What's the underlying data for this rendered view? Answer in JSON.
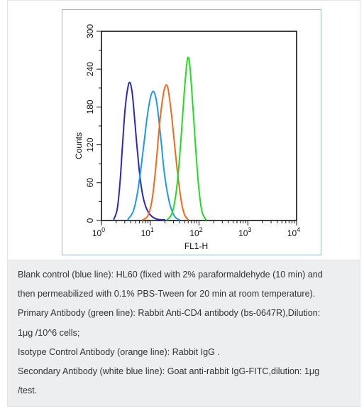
{
  "chart_data": {
    "type": "line",
    "xlabel": "FL1-H",
    "ylabel": "Counts",
    "xscale": "log",
    "xlim": [
      1,
      10000
    ],
    "ylim": [
      0,
      300
    ],
    "x_ticks": [
      {
        "base": "10",
        "exp": "0"
      },
      {
        "base": "10",
        "exp": "1"
      },
      {
        "base": "10",
        "exp": "2"
      },
      {
        "base": "10",
        "exp": "3"
      },
      {
        "base": "10",
        "exp": "4"
      }
    ],
    "y_ticks": [
      "0",
      "60",
      "120",
      "180",
      "240",
      "300"
    ],
    "y_tick_values": [
      0,
      60,
      120,
      180,
      240,
      300
    ],
    "grid": false,
    "legend": "none",
    "series": [
      {
        "color": "#2a2ab8",
        "x": [
          1.8,
          2.1,
          2.4,
          2.7,
          3.0,
          3.3,
          3.6,
          3.8,
          4.0,
          4.3,
          4.7,
          5.2,
          5.8,
          6.5,
          7.5,
          9.0,
          11,
          14,
          20
        ],
        "y": [
          2,
          18,
          60,
          120,
          170,
          200,
          216,
          219,
          215,
          200,
          168,
          128,
          88,
          55,
          30,
          14,
          6,
          2,
          0
        ]
      },
      {
        "color": "#1e9be8",
        "x": [
          3.5,
          4.5,
          5.5,
          6.5,
          7.5,
          8.5,
          9.5,
          10.5,
          11.5,
          12.5,
          13.5,
          15,
          17,
          19,
          22,
          26,
          32,
          40
        ],
        "y": [
          2,
          15,
          45,
          85,
          125,
          160,
          185,
          200,
          205,
          200,
          188,
          160,
          120,
          82,
          48,
          22,
          6,
          0
        ]
      },
      {
        "color": "#f26a1b",
        "x": [
          7,
          9,
          11,
          13,
          15,
          17,
          19,
          21,
          23,
          25,
          28,
          32,
          37,
          43,
          50,
          60
        ],
        "y": [
          0,
          8,
          35,
          85,
          140,
          180,
          205,
          215,
          210,
          192,
          160,
          115,
          70,
          32,
          10,
          0
        ]
      },
      {
        "color": "#22dd22",
        "x": [
          22,
          28,
          34,
          40,
          45,
          50,
          55,
          58,
          61,
          65,
          70,
          78,
          88,
          100,
          115,
          140
        ],
        "y": [
          0,
          12,
          45,
          100,
          155,
          205,
          242,
          256,
          258,
          245,
          212,
          160,
          100,
          48,
          14,
          0
        ]
      }
    ]
  },
  "caption": {
    "line1": "Blank control (blue line): HL60 (fixed with 2% paraformaldehyde (10 min) and",
    "line2": "then permeabilized with 0.1% PBS-Tween for 20 min at room temperature).",
    "line3": "Primary Antibody (green line): Rabbit Anti-CD4 antibody (bs-0647R),Dilution:",
    "line4": "1μg /10^6 cells;",
    "line5": "Isotype Control Antibody (orange line): Rabbit IgG .",
    "line6": "Secondary Antibody (white blue line): Goat anti-rabbit IgG-FITC,dilution: 1μg",
    "line7": "/test."
  }
}
